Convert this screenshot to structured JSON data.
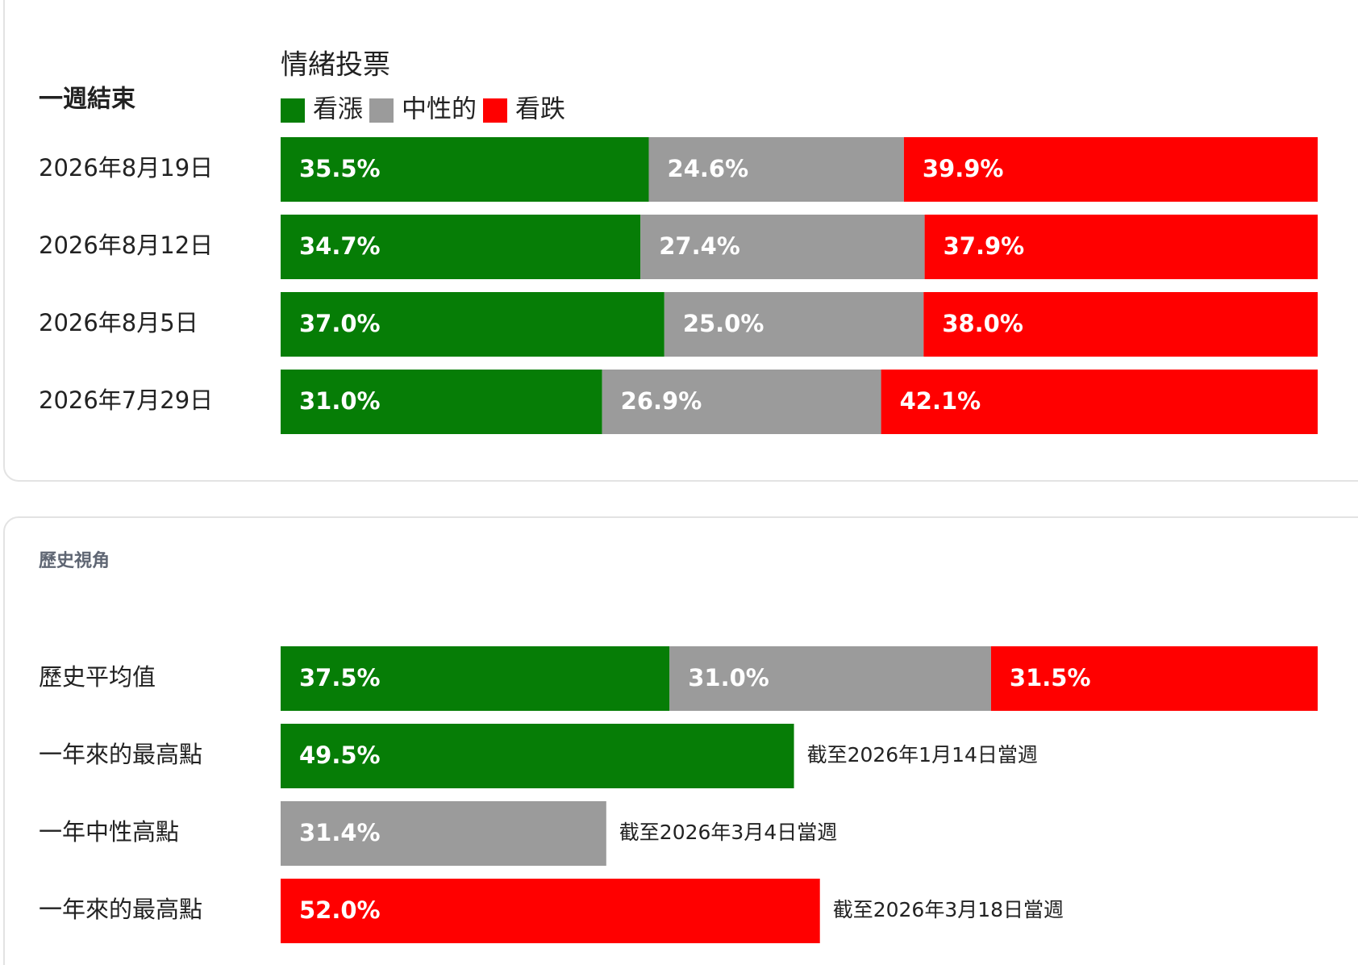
{
  "chart_data": [
    {
      "type": "stacked-bar",
      "title": "情緒投票",
      "category_header": "一週結束",
      "categories": [
        "2026年8月19日",
        "2026年8月12日",
        "2026年8月5日",
        "2026年7月29日"
      ],
      "xlim": [
        0,
        100
      ],
      "series": [
        {
          "name": "看漲",
          "color": "#067d06",
          "values": [
            35.5,
            34.7,
            37.0,
            31.0
          ],
          "value_labels": [
            "35.5%",
            "34.7%",
            "37.0%",
            "31.0%"
          ]
        },
        {
          "name": "中性的",
          "color": "#9b9b9b",
          "values": [
            24.6,
            27.4,
            25.0,
            26.9
          ],
          "value_labels": [
            "24.6%",
            "27.4%",
            "25.0%",
            "26.9%"
          ]
        },
        {
          "name": "看跌",
          "color": "#ff0000",
          "values": [
            39.9,
            37.9,
            38.0,
            42.1
          ],
          "value_labels": [
            "39.9%",
            "37.9%",
            "38.0%",
            "42.1%"
          ]
        }
      ]
    },
    {
      "type": "stacked-bar",
      "title": "歷史視角",
      "categories": [
        "歷史平均值",
        "一年來的最高點",
        "一年中性高點",
        "一年來的最高點"
      ],
      "xlim": [
        0,
        100
      ],
      "series": [
        {
          "color": "#067d06",
          "values": [
            37.5,
            49.5,
            null,
            null
          ],
          "value_labels": [
            "37.5%",
            "49.5%",
            null,
            null
          ]
        },
        {
          "color": "#9b9b9b",
          "values": [
            31.0,
            null,
            31.4,
            null
          ],
          "value_labels": [
            "31.0%",
            null,
            "31.4%",
            null
          ]
        },
        {
          "color": "#ff0000",
          "values": [
            31.5,
            null,
            null,
            52.0
          ],
          "value_labels": [
            "31.5%",
            null,
            null,
            "52.0%"
          ]
        }
      ],
      "annotations": [
        null,
        "截至2026年1月14日當週",
        "截至2026年3月4日當週",
        "截至2026年3月18日當週"
      ]
    }
  ]
}
